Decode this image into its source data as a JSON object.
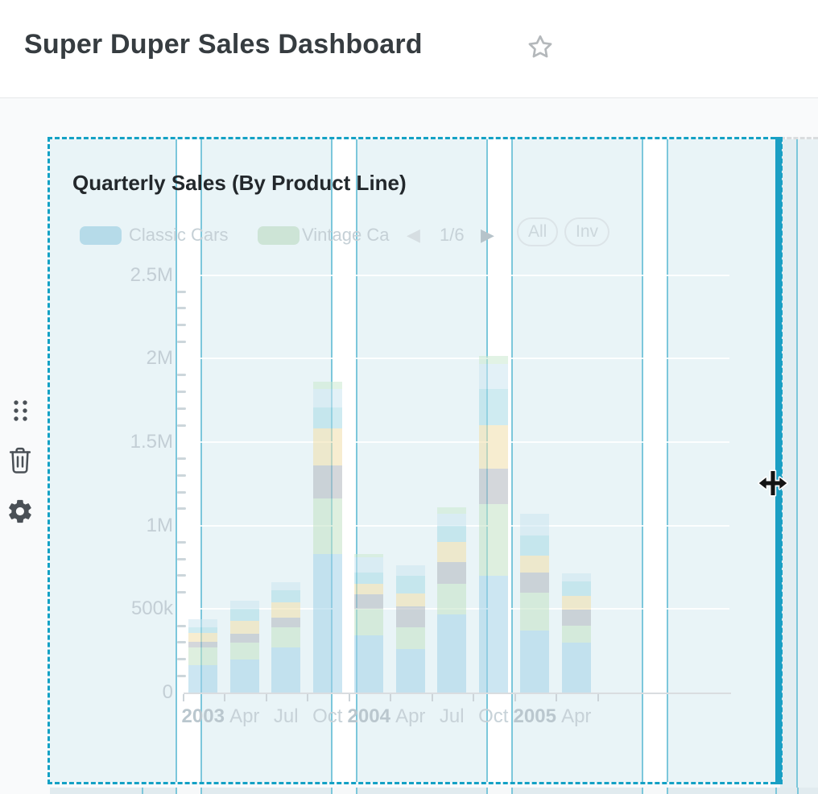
{
  "header": {
    "title": "Super Duper Sales Dashboard"
  },
  "side_toolbar": {
    "items": [
      "drag-handle",
      "trash",
      "settings-gear"
    ]
  },
  "card": {
    "title": "Quarterly Sales (By Product Line)",
    "legend": {
      "items": [
        {
          "label": "Classic Cars",
          "color": "#b6dbe9"
        },
        {
          "label": "Vintage Ca",
          "color": "#cde4d6"
        }
      ],
      "pager": {
        "prev_icon": "◀",
        "page": "1/6",
        "next_icon": "▶"
      },
      "buttons": [
        {
          "label": "All"
        },
        {
          "label": "Inv"
        }
      ]
    },
    "chart_data": {
      "type": "bar",
      "stacked": true,
      "title": "Quarterly Sales (By Product Line)",
      "categories": [
        "2003",
        "Apr",
        "Jul",
        "Oct",
        "2004",
        "Apr",
        "Jul",
        "Oct",
        "2005",
        "Apr"
      ],
      "category_is_year": [
        true,
        false,
        false,
        false,
        true,
        false,
        false,
        false,
        true,
        false
      ],
      "y_ticks": [
        {
          "label": "0",
          "value": 0
        },
        {
          "label": "500k",
          "value": 0.5
        },
        {
          "label": "1M",
          "value": 1
        },
        {
          "label": "1.5M",
          "value": 1.5
        },
        {
          "label": "2M",
          "value": 2
        },
        {
          "label": "2.5M",
          "value": 2.5
        }
      ],
      "ylim": [
        0,
        2.5
      ],
      "y_unit": "millions",
      "legend_position": "top",
      "gridlines": true,
      "series": [
        {
          "name": "Classic Cars",
          "color": "rgba(162,209,231,0.55)",
          "values": [
            0.165,
            0.2,
            0.27,
            0.83,
            0.34,
            0.26,
            0.47,
            0.7,
            0.37,
            0.3
          ]
        },
        {
          "name": "Vintage Cars",
          "color": "rgba(194,225,197,0.55)",
          "values": [
            0.105,
            0.1,
            0.12,
            0.33,
            0.16,
            0.13,
            0.18,
            0.43,
            0.23,
            0.1
          ]
        },
        {
          "name": "",
          "color": "rgba(176,183,189,0.55)",
          "values": [
            0.034,
            0.05,
            0.06,
            0.2,
            0.09,
            0.125,
            0.13,
            0.21,
            0.12,
            0.095
          ]
        },
        {
          "name": "",
          "color": "rgba(240,223,169,0.55)",
          "values": [
            0.053,
            0.08,
            0.09,
            0.22,
            0.06,
            0.08,
            0.12,
            0.26,
            0.1,
            0.085
          ]
        },
        {
          "name": "",
          "color": "rgba(168,219,229,0.55)",
          "values": [
            0.034,
            0.07,
            0.07,
            0.125,
            0.07,
            0.105,
            0.1,
            0.22,
            0.12,
            0.085
          ]
        },
        {
          "name": "",
          "color": "rgba(204,229,241,0.55)",
          "values": [
            0.048,
            0.05,
            0.05,
            0.115,
            0.09,
            0.06,
            0.07,
            0.145,
            0.13,
            0.05
          ]
        },
        {
          "name": "",
          "color": "rgba(202,233,207,0.55)",
          "values": [
            0,
            0,
            0,
            0.04,
            0.02,
            0,
            0.04,
            0.05,
            0,
            0
          ]
        }
      ]
    }
  },
  "colors": {
    "grid_accent": "#14a1c5",
    "grid_line_thin": "#7cc7db",
    "grid_edge_thick": "#1b9fc4",
    "column_fill": "#e9f4f7"
  }
}
